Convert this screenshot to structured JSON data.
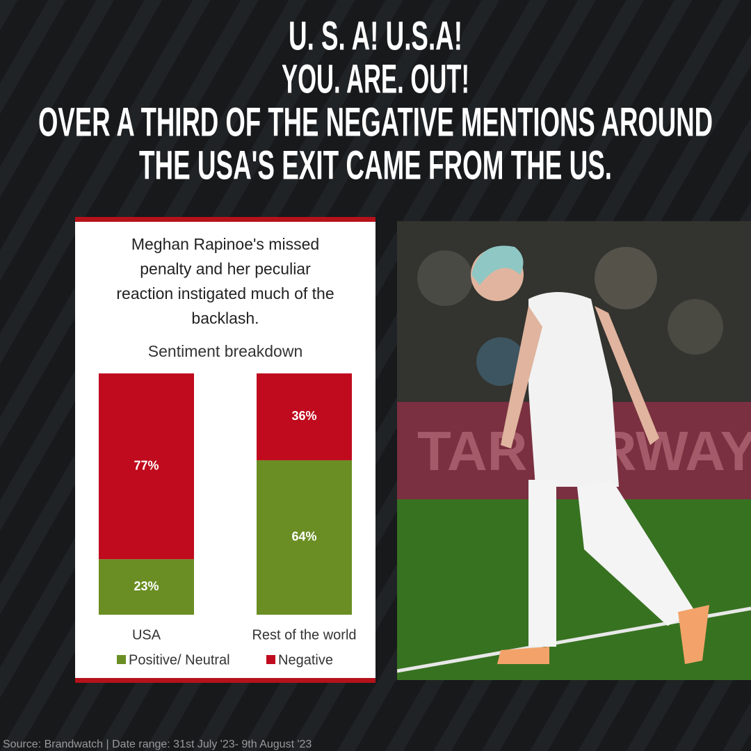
{
  "headline": [
    "U. S. A! U.S.A!",
    "YOU. ARE. OUT!",
    "OVER A THIRD OF THE NEGATIVE MENTIONS AROUND",
    "THE USA'S EXIT CAME FROM THE US."
  ],
  "chart_data": {
    "type": "stacked_bar",
    "subtitle": [
      "Meghan Rapinoe's missed",
      "penalty and her peculiar",
      "reaction instigated much of the",
      "backlash."
    ],
    "title": "Sentiment breakdown",
    "categories": [
      "USA",
      "Rest of the world"
    ],
    "series": [
      {
        "name": "Positive/ Neutral",
        "color": "#6a8e23",
        "values": [
          23,
          64
        ],
        "value_labels": [
          "23%",
          "64%"
        ]
      },
      {
        "name": "Negative",
        "color": "#c00a1e",
        "values": [
          77,
          36
        ],
        "value_labels": [
          "77%",
          "36%"
        ]
      }
    ],
    "legend": "bottom"
  },
  "source": "Source: Brandwatch | Date range: 31st July '23- 9th August '23"
}
